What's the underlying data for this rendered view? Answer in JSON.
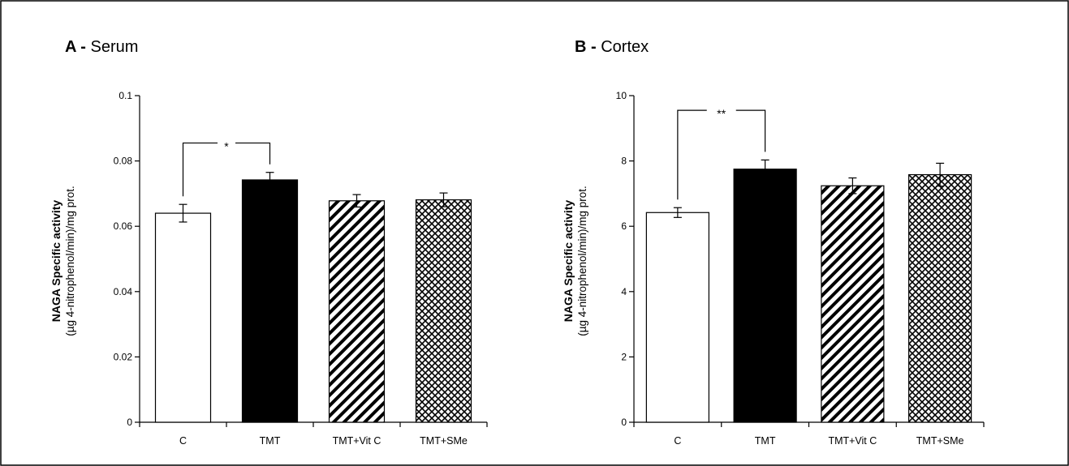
{
  "chart_data": [
    {
      "type": "bar",
      "panel_label": "A -",
      "title": "Serum",
      "ylabel": "NAGA Specific activity",
      "ylabel_sub": "(µg 4-nitrophenol/min)/mg prot.",
      "xlabel": "",
      "ylim": [
        0,
        0.1
      ],
      "yticks": [
        0,
        0.02,
        0.04,
        0.06,
        0.08,
        0.1
      ],
      "ytick_labels": [
        "0",
        "0.02",
        "0.04",
        "0.06",
        "0.08",
        "0.1"
      ],
      "categories": [
        "C",
        "TMT",
        "TMT+Vit C",
        "TMT+SMe"
      ],
      "values": [
        0.064,
        0.0742,
        0.0678,
        0.0681
      ],
      "errors": [
        0.0027,
        0.0023,
        0.0019,
        0.0021
      ],
      "fills": [
        "white",
        "black",
        "hatch-diagonal",
        "hatch-cross"
      ],
      "grid": false,
      "significance": [
        {
          "from": 0,
          "to": 1,
          "label": "*",
          "y": 0.0855
        }
      ]
    },
    {
      "type": "bar",
      "panel_label": "B -",
      "title": "Cortex",
      "ylabel": "NAGA Specific activity",
      "ylabel_sub": "(µg 4-nitrophenol/min)/mg prot.",
      "xlabel": "",
      "ylim": [
        0,
        10
      ],
      "yticks": [
        0,
        2,
        4,
        6,
        8,
        10
      ],
      "ytick_labels": [
        "0",
        "2",
        "4",
        "6",
        "8",
        "10"
      ],
      "categories": [
        "C",
        "TMT",
        "TMT+Vit C",
        "TMT+SMe"
      ],
      "values": [
        6.42,
        7.75,
        7.24,
        7.58
      ],
      "errors": [
        0.15,
        0.28,
        0.24,
        0.35
      ],
      "fills": [
        "white",
        "black",
        "hatch-diagonal",
        "hatch-cross"
      ],
      "grid": false,
      "significance": [
        {
          "from": 0,
          "to": 1,
          "label": "**",
          "y": 9.55
        }
      ]
    }
  ],
  "colors": {
    "ink": "#000000",
    "background": "#ffffff"
  }
}
